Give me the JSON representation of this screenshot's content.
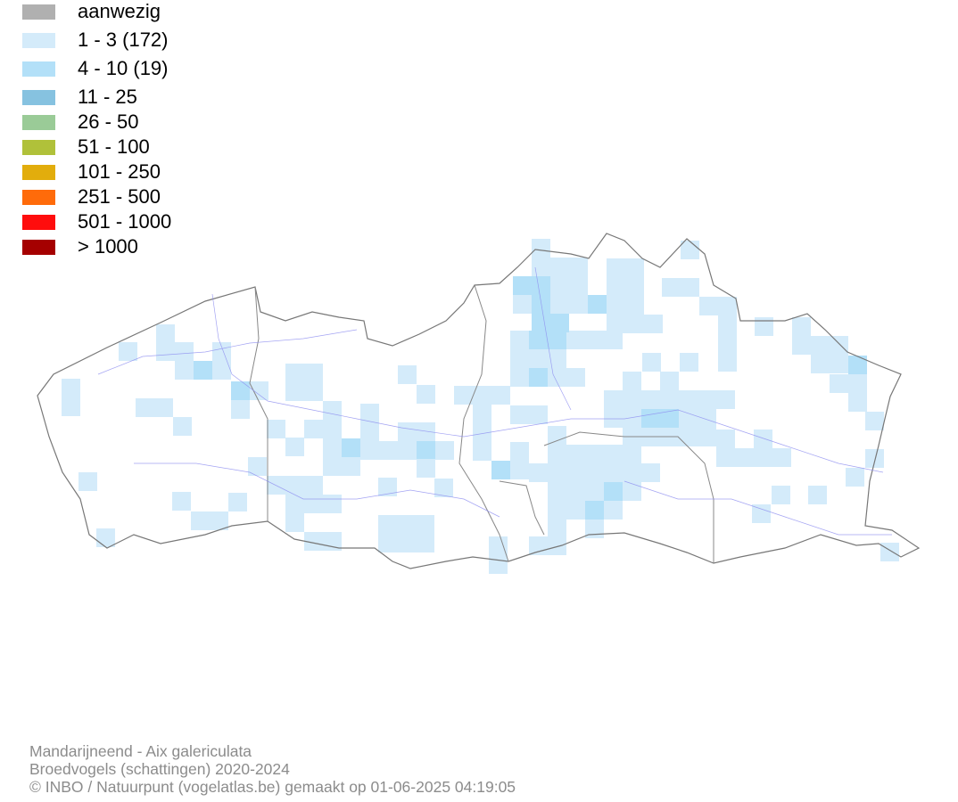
{
  "legend": {
    "items": [
      {
        "label": "aanwezig",
        "color": "#b0b0b0"
      },
      {
        "label": "1 - 3 (172)",
        "color": "#d4ebfa"
      },
      {
        "label": "4 - 10 (19)",
        "color": "#b3e0f8"
      },
      {
        "label": "11 - 25",
        "color": "#86c2e0"
      },
      {
        "label": "26 - 50",
        "color": "#9acb97"
      },
      {
        "label": "51 - 100",
        "color": "#b0c13a"
      },
      {
        "label": "101 - 250",
        "color": "#e2ad0c"
      },
      {
        "label": "251 - 500",
        "color": "#ff6b0a"
      },
      {
        "label": "501 - 1000",
        "color": "#ff0d0d"
      },
      {
        "label": "> 1000",
        "color": "#a50000"
      }
    ]
  },
  "footer": {
    "lines": [
      "Mandarijneend - Aix galericulata",
      "Broedvogels (schattingen) 2020-2024",
      "© INBO / Natuurpunt (vogelatlas.be) gemaakt op 01-06-2025 04:19:05"
    ]
  }
}
